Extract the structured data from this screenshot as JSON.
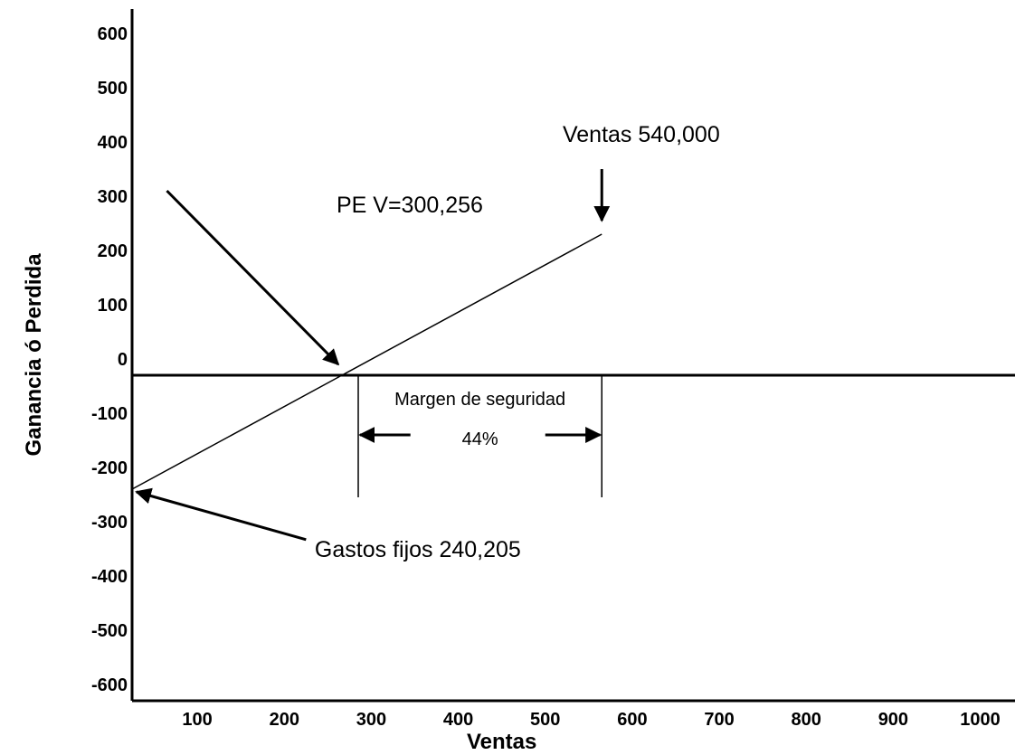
{
  "chart_data": {
    "type": "line",
    "title": "",
    "xlabel": "Ventas",
    "ylabel": "Ganancia ó Perdida",
    "x_ticks": [
      100,
      200,
      300,
      400,
      500,
      600,
      700,
      800,
      900,
      1000
    ],
    "y_ticks": [
      600,
      500,
      400,
      300,
      200,
      100,
      0,
      -100,
      -200,
      -300,
      -400,
      -500,
      -600
    ],
    "xlim": [
      25,
      1040
    ],
    "ylim": [
      -630,
      645
    ],
    "series": [
      {
        "points": [
          [
            25,
            -240
          ],
          [
            565,
            230
          ]
        ]
      }
    ],
    "reference_lines": [
      {
        "orientation": "horizontal",
        "y": -30
      },
      {
        "orientation": "vertical",
        "x": 285,
        "y_range": [
          -255,
          -30
        ]
      },
      {
        "orientation": "vertical",
        "x": 565,
        "y_range": [
          -255,
          -30
        ]
      }
    ],
    "annotations": [
      {
        "text": "PE V=300,256",
        "at": [
          260,
          270
        ],
        "arrow_from": [
          65,
          310
        ],
        "arrow_to": [
          262,
          -10
        ]
      },
      {
        "text": "Ventas 540,000",
        "at": [
          520,
          400
        ],
        "arrow_from": [
          565,
          350
        ],
        "arrow_to": [
          565,
          255
        ]
      },
      {
        "text": "Gastos fijos 240,205",
        "at": [
          235,
          -365
        ],
        "arrow_from": [
          225,
          -333
        ],
        "arrow_to": [
          30,
          -245
        ]
      },
      {
        "text": "Margen de seguridad",
        "at": [
          425,
          -85
        ]
      },
      {
        "text": "44%",
        "at": [
          425,
          -158
        ],
        "arrows": [
          [
            [
              345,
              -140
            ],
            [
              287,
              -140
            ]
          ],
          [
            [
              500,
              -140
            ],
            [
              563,
              -140
            ]
          ]
        ]
      }
    ]
  }
}
